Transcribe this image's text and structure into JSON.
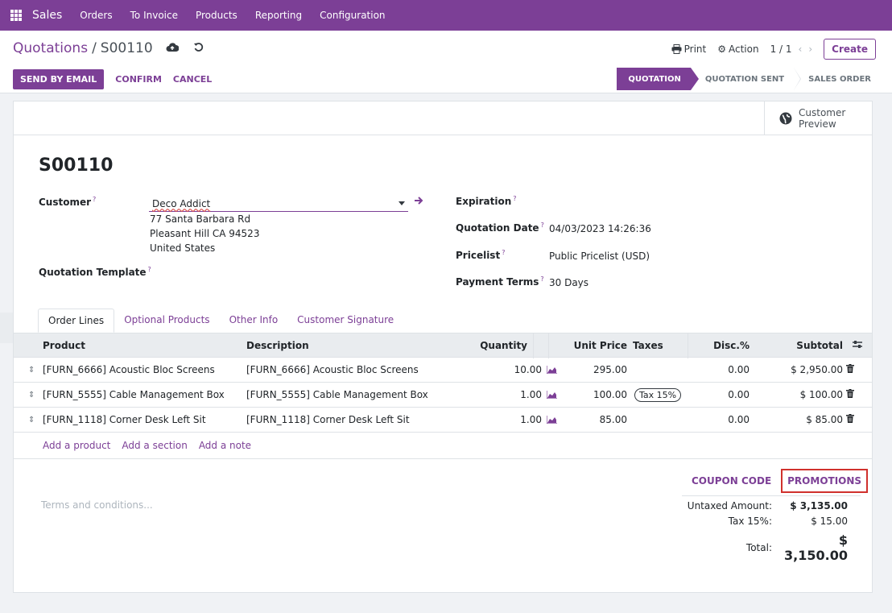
{
  "topbar": {
    "brand": "Sales",
    "menu": [
      "Orders",
      "To Invoice",
      "Products",
      "Reporting",
      "Configuration"
    ]
  },
  "breadcrumb": {
    "parent": "Quotations",
    "separator": "/",
    "current": "S00110"
  },
  "control": {
    "print": "Print",
    "action": "Action",
    "pager": "1 / 1",
    "create": "Create"
  },
  "actions": {
    "send_email": "SEND BY EMAIL",
    "confirm": "CONFIRM",
    "cancel": "CANCEL"
  },
  "statusbar": {
    "stages": [
      "QUOTATION",
      "QUOTATION SENT",
      "SALES ORDER"
    ],
    "active": "QUOTATION"
  },
  "smart_button": {
    "line1": "Customer",
    "line2": "Preview"
  },
  "record": {
    "name": "S00110",
    "customer_label": "Customer",
    "customer_value": "Deco Addict",
    "address": [
      "77 Santa Barbara Rd",
      "Pleasant Hill CA 94523",
      "United States"
    ],
    "template_label": "Quotation Template",
    "expiration_label": "Expiration",
    "quotation_date_label": "Quotation Date",
    "quotation_date_value": "04/03/2023 14:26:36",
    "pricelist_label": "Pricelist",
    "pricelist_value": "Public Pricelist (USD)",
    "payment_terms_label": "Payment Terms",
    "payment_terms_value": "30 Days",
    "help_mark": "?"
  },
  "tabs": [
    "Order Lines",
    "Optional Products",
    "Other Info",
    "Customer Signature"
  ],
  "table": {
    "headers": {
      "product": "Product",
      "description": "Description",
      "quantity": "Quantity",
      "unit_price": "Unit Price",
      "taxes": "Taxes",
      "disc": "Disc.%",
      "subtotal": "Subtotal"
    },
    "rows": [
      {
        "product": "[FURN_6666] Acoustic Bloc Screens",
        "description": "[FURN_6666] Acoustic Bloc Screens",
        "quantity": "10.00",
        "unit_price": "295.00",
        "taxes": "",
        "disc": "0.00",
        "subtotal": "$ 2,950.00"
      },
      {
        "product": "[FURN_5555] Cable Management Box",
        "description": "[FURN_5555] Cable Management Box",
        "quantity": "1.00",
        "unit_price": "100.00",
        "taxes": "Tax 15%",
        "disc": "0.00",
        "subtotal": "$ 100.00"
      },
      {
        "product": "[FURN_1118] Corner Desk Left Sit",
        "description": "[FURN_1118] Corner Desk Left Sit",
        "quantity": "1.00",
        "unit_price": "85.00",
        "taxes": "",
        "disc": "0.00",
        "subtotal": "$ 85.00"
      }
    ],
    "add_links": [
      "Add a product",
      "Add a section",
      "Add a note"
    ]
  },
  "footer": {
    "terms_placeholder": "Terms and conditions...",
    "coupon_code": "COUPON CODE",
    "promotions": "PROMOTIONS",
    "untaxed_label": "Untaxed Amount:",
    "untaxed_value": "$ 3,135.00",
    "tax_label": "Tax 15%:",
    "tax_value": "$ 15.00",
    "total_label": "Total:",
    "total_value": "$ 3,150.00"
  },
  "colors": {
    "brand": "#7c3f96",
    "highlight_box": "#d0312d"
  }
}
